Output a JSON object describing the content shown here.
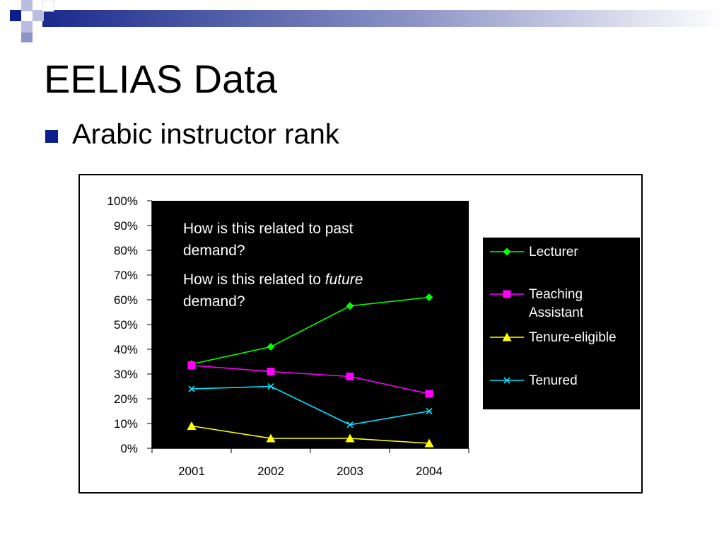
{
  "slide": {
    "title": "EELIAS Data",
    "bullet": "Arabic instructor rank"
  },
  "annotations": {
    "q1_line1": "How is this related to past",
    "q1_line2": "demand?",
    "q2_line1_prefix": "How is this related to ",
    "q2_line1_em": "future",
    "q2_line2": "demand?"
  },
  "colors": {
    "bullet": "#0b1f8c",
    "plot_bg": "#000000",
    "lecturer": "#00ff00",
    "teaching_assistant": "#ff00ff",
    "tenure_eligible": "#ffff00",
    "tenured": "#00e5ff"
  },
  "chart_data": {
    "type": "line",
    "categories": [
      "2001",
      "2002",
      "2003",
      "2004"
    ],
    "y_ticks": [
      "0%",
      "10%",
      "20%",
      "30%",
      "40%",
      "50%",
      "60%",
      "70%",
      "80%",
      "90%",
      "100%"
    ],
    "ylim": [
      0,
      100
    ],
    "grid": false,
    "legend_position": "right",
    "series": [
      {
        "name": "Lecturer",
        "name_lines": [
          "Lecturer"
        ],
        "marker": "diamond",
        "color": "#00ff00",
        "values": [
          34,
          41,
          57.5,
          61
        ]
      },
      {
        "name": "Teaching Assistant",
        "name_lines": [
          "Teaching",
          "Assistant"
        ],
        "marker": "square",
        "color": "#ff00ff",
        "values": [
          33.5,
          31,
          29,
          22
        ]
      },
      {
        "name": "Tenure-eligible",
        "name_lines": [
          "Tenure-eligible"
        ],
        "marker": "triangle",
        "color": "#ffff00",
        "values": [
          9,
          4,
          4,
          2
        ]
      },
      {
        "name": "Tenured",
        "name_lines": [
          "Tenured"
        ],
        "marker": "x",
        "color": "#00e5ff",
        "values": [
          24,
          25,
          9.5,
          15
        ]
      }
    ]
  }
}
